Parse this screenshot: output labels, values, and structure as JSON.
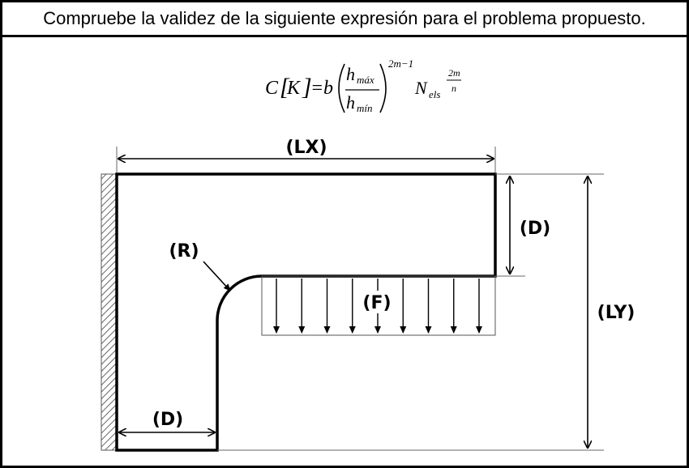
{
  "header": {
    "title": "Compruebe la validez de la siguiente expresión para el problema propuesto."
  },
  "formula": {
    "lhs_C": "C",
    "lhs_K": "K",
    "equals": "=",
    "b": "b",
    "num_h": "h",
    "num_sub": "máx",
    "den_h": "h",
    "den_sub": "mín",
    "power": "2m−1",
    "N": "N",
    "N_sub": "els",
    "exp_num": "2m",
    "exp_den": "n"
  },
  "diagram": {
    "labels": {
      "lx": "(LX)",
      "ly": "(LY)",
      "d_right": "(D)",
      "d_bottom": "(D)",
      "r": "(R)",
      "f": "(F)"
    },
    "load_arrow_count": 9,
    "colors": {
      "stroke": "#000000",
      "thin": "#555555",
      "hatch": "#666666"
    }
  }
}
